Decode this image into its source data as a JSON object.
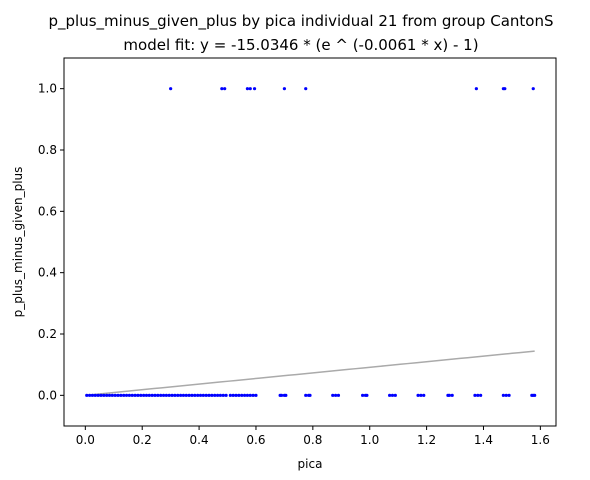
{
  "chart_data": {
    "type": "scatter",
    "title": "p_plus_minus_given_plus by pica individual 21 from group CantonS",
    "subtitle": "model fit: y = -15.0346 * (e ^ (-0.0061 * x) - 1)",
    "xlabel": "pica",
    "ylabel": "p_plus_minus_given_plus",
    "xlim": [
      -0.075,
      1.655
    ],
    "ylim": [
      -0.1,
      1.1
    ],
    "xticks": [
      0.0,
      0.2,
      0.4,
      0.6,
      0.8,
      1.0,
      1.2,
      1.4,
      1.6
    ],
    "xtick_labels": [
      "0.0",
      "0.2",
      "0.4",
      "0.6",
      "0.8",
      "1.0",
      "1.2",
      "1.4",
      "1.6"
    ],
    "yticks": [
      0.0,
      0.2,
      0.4,
      0.6,
      0.8,
      1.0
    ],
    "ytick_labels": [
      "0.0",
      "0.2",
      "0.4",
      "0.6",
      "0.8",
      "1.0"
    ],
    "grid": false,
    "point_color": "#0000ff",
    "fit_color": "#aaaaaa",
    "series": [
      {
        "x": [
          0.3,
          0.48,
          0.49,
          0.57,
          0.58,
          0.595,
          0.7,
          0.775,
          1.375,
          1.47,
          1.475,
          1.575,
          0.005,
          0.015,
          0.025,
          0.035,
          0.045,
          0.055,
          0.065,
          0.075,
          0.085,
          0.095,
          0.105,
          0.115,
          0.125,
          0.135,
          0.145,
          0.155,
          0.165,
          0.175,
          0.185,
          0.195,
          0.205,
          0.215,
          0.225,
          0.235,
          0.245,
          0.255,
          0.265,
          0.275,
          0.285,
          0.295,
          0.305,
          0.315,
          0.325,
          0.335,
          0.345,
          0.355,
          0.365,
          0.375,
          0.385,
          0.395,
          0.405,
          0.415,
          0.425,
          0.435,
          0.445,
          0.455,
          0.465,
          0.475,
          0.485,
          0.495,
          0.51,
          0.52,
          0.53,
          0.54,
          0.55,
          0.56,
          0.57,
          0.58,
          0.59,
          0.6,
          0.685,
          0.69,
          0.7,
          0.705,
          0.775,
          0.785,
          0.79,
          0.87,
          0.88,
          0.89,
          0.975,
          0.985,
          0.99,
          1.07,
          1.08,
          1.09,
          1.17,
          1.18,
          1.19,
          1.275,
          1.28,
          1.29,
          1.37,
          1.38,
          1.39,
          1.47,
          1.48,
          1.49,
          1.57,
          1.575,
          1.58
        ],
        "y": [
          1,
          1,
          1,
          1,
          1,
          1,
          1,
          1,
          1,
          1,
          1,
          1,
          0,
          0,
          0,
          0,
          0,
          0,
          0,
          0,
          0,
          0,
          0,
          0,
          0,
          0,
          0,
          0,
          0,
          0,
          0,
          0,
          0,
          0,
          0,
          0,
          0,
          0,
          0,
          0,
          0,
          0,
          0,
          0,
          0,
          0,
          0,
          0,
          0,
          0,
          0,
          0,
          0,
          0,
          0,
          0,
          0,
          0,
          0,
          0,
          0,
          0,
          0,
          0,
          0,
          0,
          0,
          0,
          0,
          0,
          0,
          0,
          0,
          0,
          0,
          0,
          0,
          0,
          0,
          0,
          0,
          0,
          0,
          0,
          0,
          0,
          0,
          0,
          0,
          0,
          0,
          0,
          0,
          0,
          0,
          0,
          0,
          0,
          0,
          0,
          0,
          0,
          0
        ]
      }
    ],
    "fit": {
      "a": -15.0346,
      "b": -0.0061,
      "x_min": 0.005,
      "x_max": 1.58
    }
  }
}
